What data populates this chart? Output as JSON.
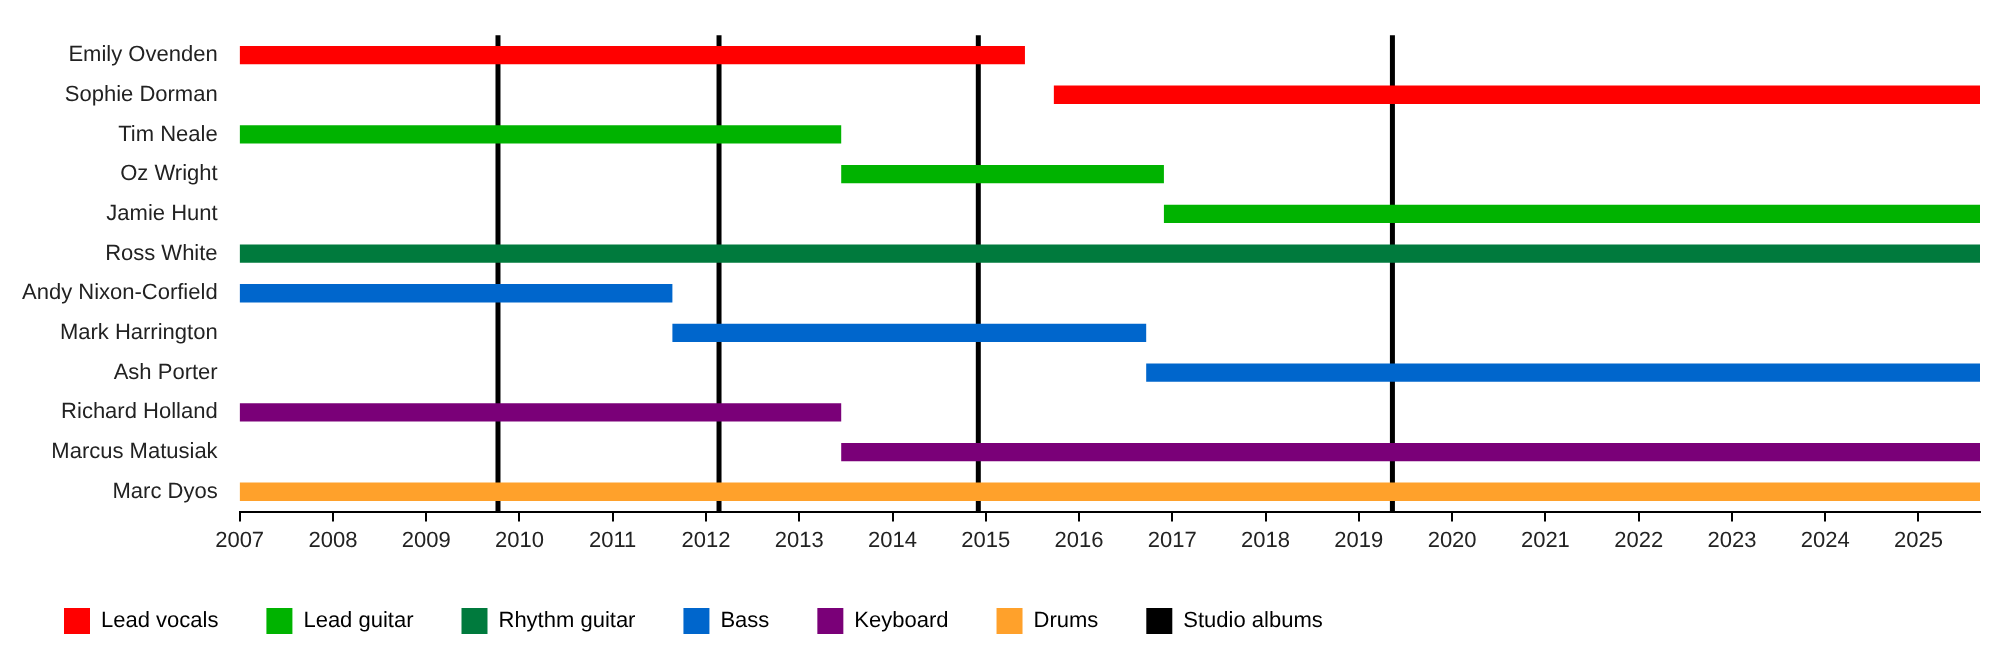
{
  "chart_data": {
    "type": "bar",
    "orientation": "horizontal",
    "categories": [
      "Emily Ovenden",
      "Sophie Dorman",
      "Tim Neale",
      "Oz Wright",
      "Jamie Hunt",
      "Ross White",
      "Andy Nixon-Corfield",
      "Mark Harrington",
      "Ash Porter",
      "Richard Holland",
      "Marcus Matusiak",
      "Marc Dyos"
    ],
    "series": [
      {
        "name": "Lead vocals",
        "color": "#ff0000",
        "base": [
          2007,
          2015.73,
          null,
          null,
          null,
          null,
          null,
          null,
          null,
          null,
          null,
          null
        ],
        "values": [
          8.42,
          9.93,
          null,
          null,
          null,
          null,
          null,
          null,
          null,
          null,
          null,
          null
        ]
      },
      {
        "name": "Lead guitar",
        "color": "#00b300",
        "base": [
          null,
          null,
          2007,
          2013.45,
          2016.91,
          null,
          null,
          null,
          null,
          null,
          null,
          null
        ],
        "values": [
          null,
          null,
          6.45,
          3.46,
          8.75,
          null,
          null,
          null,
          null,
          null,
          null,
          null
        ]
      },
      {
        "name": "Rhythm guitar",
        "color": "#007a3d",
        "base": [
          null,
          null,
          null,
          null,
          null,
          2007,
          null,
          null,
          null,
          null,
          null,
          null
        ],
        "values": [
          null,
          null,
          null,
          null,
          null,
          18.66,
          null,
          null,
          null,
          null,
          null,
          null
        ]
      },
      {
        "name": "Bass",
        "color": "#0066cc",
        "base": [
          null,
          null,
          null,
          null,
          null,
          null,
          2007,
          2011.64,
          2016.72,
          null,
          null,
          null
        ],
        "values": [
          null,
          null,
          null,
          null,
          null,
          null,
          4.64,
          5.08,
          8.94,
          null,
          null,
          null
        ]
      },
      {
        "name": "Keyboard",
        "color": "#7a0078",
        "base": [
          null,
          null,
          null,
          null,
          null,
          null,
          null,
          null,
          null,
          2007,
          2013.45,
          null
        ],
        "values": [
          null,
          null,
          null,
          null,
          null,
          null,
          null,
          null,
          null,
          6.45,
          12.21,
          null
        ]
      },
      {
        "name": "Drums",
        "color": "#ffa12b",
        "base": [
          null,
          null,
          null,
          null,
          null,
          null,
          null,
          null,
          null,
          null,
          null,
          2007
        ],
        "values": [
          null,
          null,
          null,
          null,
          null,
          null,
          null,
          null,
          null,
          null,
          null,
          18.66
        ]
      }
    ],
    "ref_lines": [
      {
        "axis": "x",
        "value": 2009.77,
        "label": "Studio albums",
        "color": "#000000"
      },
      {
        "axis": "x",
        "value": 2012.14,
        "color": "#000000"
      },
      {
        "axis": "x",
        "value": 2014.92,
        "color": "#000000"
      },
      {
        "axis": "x",
        "value": 2019.36,
        "color": "#000000"
      }
    ],
    "xlim": [
      2007,
      2025.66
    ],
    "xticks": [
      2007,
      2008,
      2009,
      2010,
      2011,
      2012,
      2013,
      2014,
      2015,
      2016,
      2017,
      2018,
      2019,
      2020,
      2021,
      2022,
      2023,
      2024,
      2025
    ],
    "grid": false,
    "legend": "bottom"
  }
}
